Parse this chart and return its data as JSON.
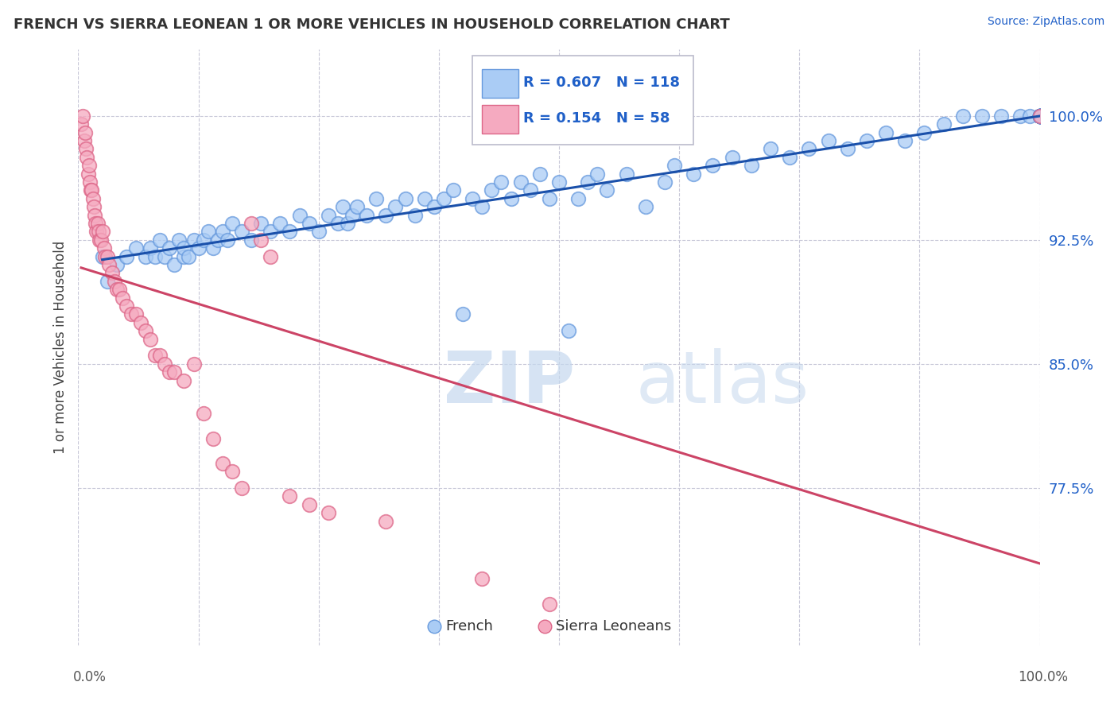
{
  "title": "FRENCH VS SIERRA LEONEAN 1 OR MORE VEHICLES IN HOUSEHOLD CORRELATION CHART",
  "source": "Source: ZipAtlas.com",
  "ylabel": "1 or more Vehicles in Household",
  "yticks": [
    77.5,
    85.0,
    92.5,
    100.0
  ],
  "ytick_labels": [
    "77.5%",
    "85.0%",
    "92.5%",
    "100.0%"
  ],
  "xlim": [
    0.0,
    100.0
  ],
  "ylim": [
    68.0,
    104.0
  ],
  "legend_french_R": "R = 0.607",
  "legend_french_N": "N = 118",
  "legend_sierra_R": "R = 0.154",
  "legend_sierra_N": "N = 58",
  "french_color": "#aaccf5",
  "french_edge": "#6699dd",
  "sierra_color": "#f5aac0",
  "sierra_edge": "#dd6688",
  "trendline_french_color": "#1a50aa",
  "trendline_sierra_color": "#cc4466",
  "watermark_zip": "ZIP",
  "watermark_atlas": "atlas",
  "french_x": [
    2.5,
    3.0,
    4.0,
    5.0,
    6.0,
    7.0,
    7.5,
    8.0,
    8.5,
    9.0,
    9.5,
    10.0,
    10.5,
    11.0,
    11.0,
    11.5,
    12.0,
    12.5,
    13.0,
    13.5,
    14.0,
    14.5,
    15.0,
    15.5,
    16.0,
    17.0,
    18.0,
    19.0,
    20.0,
    21.0,
    22.0,
    23.0,
    24.0,
    25.0,
    26.0,
    27.0,
    27.5,
    28.0,
    28.5,
    29.0,
    30.0,
    31.0,
    32.0,
    33.0,
    34.0,
    35.0,
    36.0,
    37.0,
    38.0,
    39.0,
    40.0,
    41.0,
    42.0,
    43.0,
    44.0,
    45.0,
    46.0,
    47.0,
    48.0,
    49.0,
    50.0,
    51.0,
    52.0,
    53.0,
    54.0,
    55.0,
    57.0,
    59.0,
    61.0,
    62.0,
    64.0,
    66.0,
    68.0,
    70.0,
    72.0,
    74.0,
    76.0,
    78.0,
    80.0,
    82.0,
    84.0,
    86.0,
    88.0,
    90.0,
    92.0,
    94.0,
    96.0,
    98.0,
    99.0,
    100.0,
    100.0,
    100.0,
    100.0,
    100.0,
    100.0,
    100.0,
    100.0,
    100.0,
    100.0,
    100.0,
    100.0,
    100.0,
    100.0,
    100.0,
    100.0,
    100.0,
    100.0,
    100.0,
    100.0,
    100.0,
    100.0,
    100.0,
    100.0,
    100.0,
    100.0,
    100.0,
    100.0,
    100.0
  ],
  "french_y": [
    91.5,
    90.0,
    91.0,
    91.5,
    92.0,
    91.5,
    92.0,
    91.5,
    92.5,
    91.5,
    92.0,
    91.0,
    92.5,
    91.5,
    92.0,
    91.5,
    92.5,
    92.0,
    92.5,
    93.0,
    92.0,
    92.5,
    93.0,
    92.5,
    93.5,
    93.0,
    92.5,
    93.5,
    93.0,
    93.5,
    93.0,
    94.0,
    93.5,
    93.0,
    94.0,
    93.5,
    94.5,
    93.5,
    94.0,
    94.5,
    94.0,
    95.0,
    94.0,
    94.5,
    95.0,
    94.0,
    95.0,
    94.5,
    95.0,
    95.5,
    88.0,
    95.0,
    94.5,
    95.5,
    96.0,
    95.0,
    96.0,
    95.5,
    96.5,
    95.0,
    96.0,
    87.0,
    95.0,
    96.0,
    96.5,
    95.5,
    96.5,
    94.5,
    96.0,
    97.0,
    96.5,
    97.0,
    97.5,
    97.0,
    98.0,
    97.5,
    98.0,
    98.5,
    98.0,
    98.5,
    99.0,
    98.5,
    99.0,
    99.5,
    100.0,
    100.0,
    100.0,
    100.0,
    100.0,
    100.0,
    100.0,
    100.0,
    100.0,
    100.0,
    100.0,
    100.0,
    100.0,
    100.0,
    100.0,
    100.0,
    100.0,
    100.0,
    100.0,
    100.0,
    100.0,
    100.0,
    100.0,
    100.0,
    100.0,
    100.0,
    100.0,
    100.0,
    100.0,
    100.0,
    100.0,
    100.0,
    100.0,
    100.0
  ],
  "sierra_x": [
    0.3,
    0.5,
    0.6,
    0.7,
    0.8,
    0.9,
    1.0,
    1.1,
    1.2,
    1.3,
    1.4,
    1.5,
    1.6,
    1.7,
    1.8,
    1.9,
    2.0,
    2.1,
    2.2,
    2.4,
    2.5,
    2.7,
    2.8,
    3.0,
    3.2,
    3.5,
    3.8,
    4.0,
    4.3,
    4.6,
    5.0,
    5.5,
    6.0,
    6.5,
    7.0,
    7.5,
    8.0,
    8.5,
    9.0,
    9.5,
    10.0,
    11.0,
    12.0,
    13.0,
    14.0,
    15.0,
    16.0,
    17.0,
    18.0,
    19.0,
    20.0,
    22.0,
    24.0,
    26.0,
    32.0,
    42.0,
    49.0,
    100.0
  ],
  "sierra_y": [
    99.5,
    100.0,
    98.5,
    99.0,
    98.0,
    97.5,
    96.5,
    97.0,
    96.0,
    95.5,
    95.5,
    95.0,
    94.5,
    94.0,
    93.5,
    93.0,
    93.5,
    93.0,
    92.5,
    92.5,
    93.0,
    92.0,
    91.5,
    91.5,
    91.0,
    90.5,
    90.0,
    89.5,
    89.5,
    89.0,
    88.5,
    88.0,
    88.0,
    87.5,
    87.0,
    86.5,
    85.5,
    85.5,
    85.0,
    84.5,
    84.5,
    84.0,
    85.0,
    82.0,
    80.5,
    79.0,
    78.5,
    77.5,
    93.5,
    92.5,
    91.5,
    77.0,
    76.5,
    76.0,
    75.5,
    72.0,
    70.5,
    100.0
  ]
}
